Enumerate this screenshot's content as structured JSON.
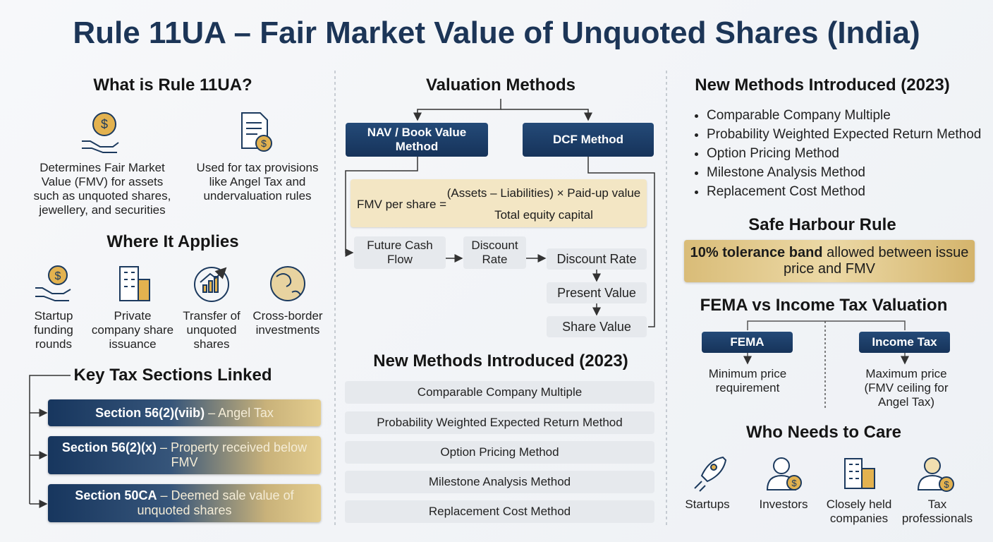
{
  "title": "Rule 11UA – Fair Market Value of Unquoted Shares (India)",
  "what": {
    "heading": "What is Rule 11UA?",
    "items": [
      "Determines Fair Market Value (FMV) for assets such as unquoted shares, jewellery, and securities",
      "Used for tax provisions like Angel Tax and undervaluation rules"
    ]
  },
  "applies": {
    "heading": "Where It Applies",
    "items": [
      "Startup funding rounds",
      "Private company share issuance",
      "Transfer of unquoted shares",
      "Cross-border investments"
    ]
  },
  "sections": {
    "heading": "Key Tax Sections Linked",
    "items": [
      {
        "code": "Section 56(2)(viib)",
        "desc": "– Angel Tax"
      },
      {
        "code": "Section 56(2)(x)",
        "desc": "– Property received below FMV"
      },
      {
        "code": "Section 50CA",
        "desc": "– Deemed sale value of unquoted shares"
      }
    ]
  },
  "valuation": {
    "heading": "Valuation Methods",
    "nav": "NAV / Book Value Method",
    "dcf": "DCF Method",
    "formula": {
      "lhs": "FMV per share =",
      "numerator": "(Assets – Liabilities) × Paid-up value",
      "denominator": "Total equity capital"
    },
    "flow": [
      "Future Cash Flow",
      "Discount Rate",
      "Discount Rate",
      "Present Value",
      "Share Value"
    ]
  },
  "new_methods_middle": {
    "heading": "New Methods Introduced (2023)",
    "items": [
      "Comparable Company Multiple",
      "Probability Weighted Expected Return Method",
      "Option Pricing Method",
      "Milestone Analysis Method",
      "Replacement Cost Method"
    ]
  },
  "new_methods_right": {
    "heading": "New Methods Introduced (2023)",
    "items": [
      "Comparable Company Multiple",
      "Probability Weighted Expected Return Method",
      "Option Pricing Method",
      "Milestone Analysis Method",
      "Replacement Cost Method"
    ]
  },
  "safe_harbour": {
    "heading": "Safe Harbour Rule",
    "bold": "10% tolerance band",
    "text": "allowed between issue price and FMV"
  },
  "fema": {
    "heading": "FEMA vs Income Tax Valuation",
    "left_label": "FEMA",
    "left_text": "Minimum price requirement",
    "right_label": "Income Tax",
    "right_text": "Maximum price (FMV ceiling for Angel Tax)"
  },
  "who": {
    "heading": "Who Needs to Care",
    "items": [
      "Startups",
      "Investors",
      "Closely held companies",
      "Tax professionals"
    ]
  }
}
